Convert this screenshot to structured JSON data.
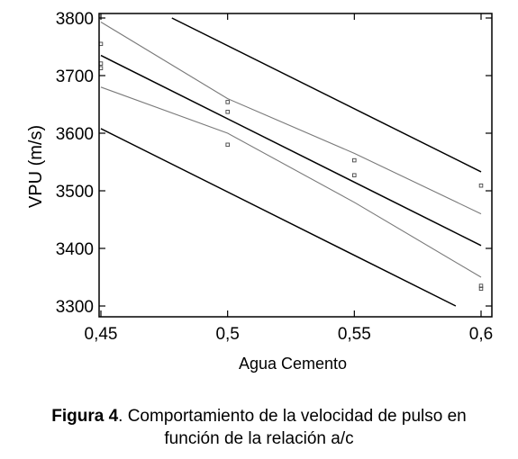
{
  "chart_data": {
    "type": "scatter",
    "title": "",
    "xlabel": "Agua Cemento",
    "ylabel": "VPU (m/s)",
    "xlim": [
      0.45,
      0.6
    ],
    "ylim": [
      3280,
      3810
    ],
    "x_ticks": [
      0.45,
      0.5,
      0.55,
      0.6
    ],
    "x_tick_labels": [
      "0,45",
      "0,5",
      "0,55",
      "0,6"
    ],
    "y_ticks": [
      3300,
      3400,
      3500,
      3600,
      3700,
      3800
    ],
    "y_tick_labels": [
      "3300",
      "3400",
      "3500",
      "3600",
      "3700",
      "3800"
    ],
    "grid": false,
    "points": [
      {
        "x": 0.45,
        "y": 3755
      },
      {
        "x": 0.45,
        "y": 3721
      },
      {
        "x": 0.45,
        "y": 3713
      },
      {
        "x": 0.5,
        "y": 3654
      },
      {
        "x": 0.5,
        "y": 3637
      },
      {
        "x": 0.5,
        "y": 3580
      },
      {
        "x": 0.55,
        "y": 3553
      },
      {
        "x": 0.55,
        "y": 3527
      },
      {
        "x": 0.6,
        "y": 3509
      },
      {
        "x": 0.6,
        "y": 3335
      },
      {
        "x": 0.6,
        "y": 3330
      }
    ],
    "lines": [
      {
        "role": "fit",
        "x": [
          0.45,
          0.6
        ],
        "y": [
          3735,
          3405
        ]
      },
      {
        "role": "confidence-upper",
        "x": [
          0.45,
          0.5,
          0.55,
          0.6
        ],
        "y": [
          3793,
          3660,
          3565,
          3460
        ]
      },
      {
        "role": "confidence-lower",
        "x": [
          0.45,
          0.5,
          0.55,
          0.6
        ],
        "y": [
          3680,
          3600,
          3480,
          3350
        ]
      },
      {
        "role": "prediction-upper",
        "x": [
          0.478,
          0.6
        ],
        "y": [
          3800,
          3533
        ]
      },
      {
        "role": "prediction-lower",
        "x": [
          0.45,
          0.59
        ],
        "y": [
          3608,
          3300
        ]
      }
    ],
    "colors": {
      "fit": "#000000",
      "confidence": "#7a7a7a",
      "prediction": "#000000",
      "points": "#444444"
    }
  },
  "caption": {
    "label": "Figura 4",
    "line1": ". Comportamiento de la velocidad de pulso en",
    "line2": "función de la relación a/c"
  }
}
